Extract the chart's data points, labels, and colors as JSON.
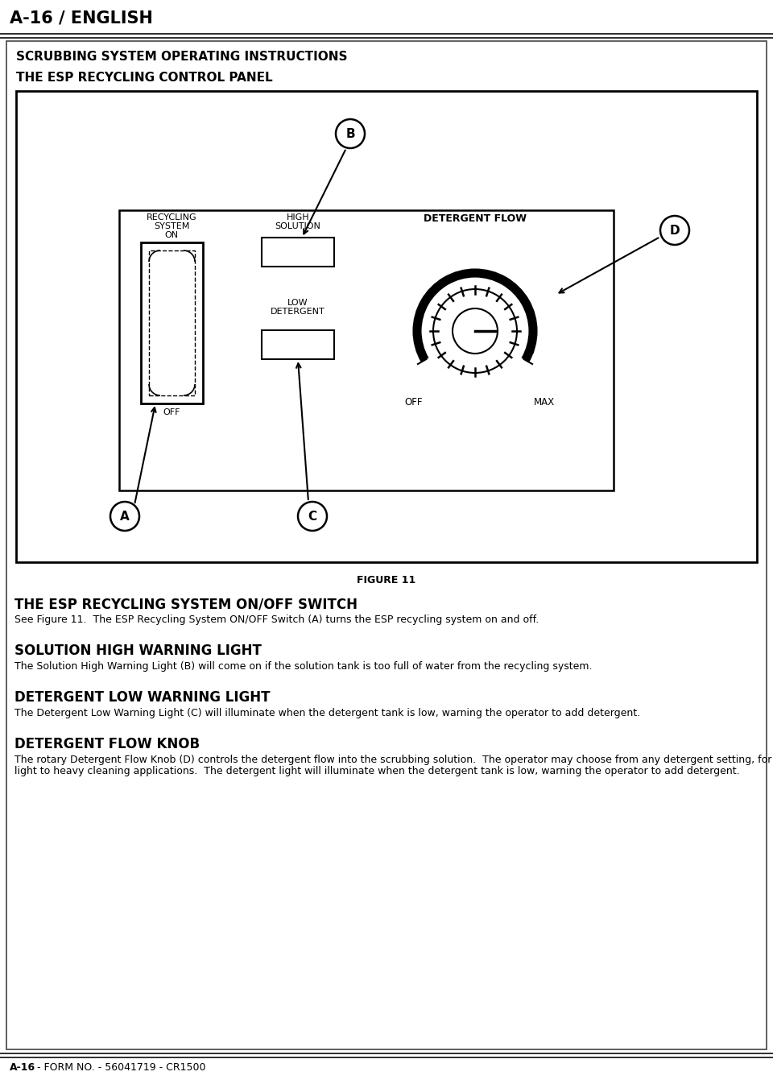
{
  "page_title": "A-16 / ENGLISH",
  "section_title": "SCRUBBING SYSTEM OPERATING INSTRUCTIONS",
  "panel_title": "THE ESP RECYCLING CONTROL PANEL",
  "figure_label": "FIGURE 11",
  "footer_bold": "A-16",
  "footer_normal": " - FORM NO. - 56041719 - CR1500",
  "section1_heading": "THE ESP RECYCLING SYSTEM ON/OFF SWITCH",
  "section1_body": "See Figure 11.  The ESP Recycling System ON/OFF Switch (A) turns the ESP recycling system on and off.",
  "section2_heading": "SOLUTION HIGH WARNING LIGHT",
  "section2_body": "The Solution High Warning Light (B) will come on if the solution tank is too full of water from the recycling system.",
  "section3_heading": "DETERGENT LOW WARNING LIGHT",
  "section3_body": "The Detergent Low Warning Light (C) will illuminate when the detergent tank is low, warning the operator to add detergent.",
  "section4_heading": "DETERGENT FLOW KNOB",
  "section4_body": "The rotary Detergent Flow Knob (D) controls the detergent flow into the scrubbing solution.  The operator may choose from any detergent setting, for light to heavy cleaning applications.  The detergent light will illuminate when the detergent tank is low, warning the operator to add detergent.",
  "bg_color": "#ffffff",
  "text_color": "#000000"
}
